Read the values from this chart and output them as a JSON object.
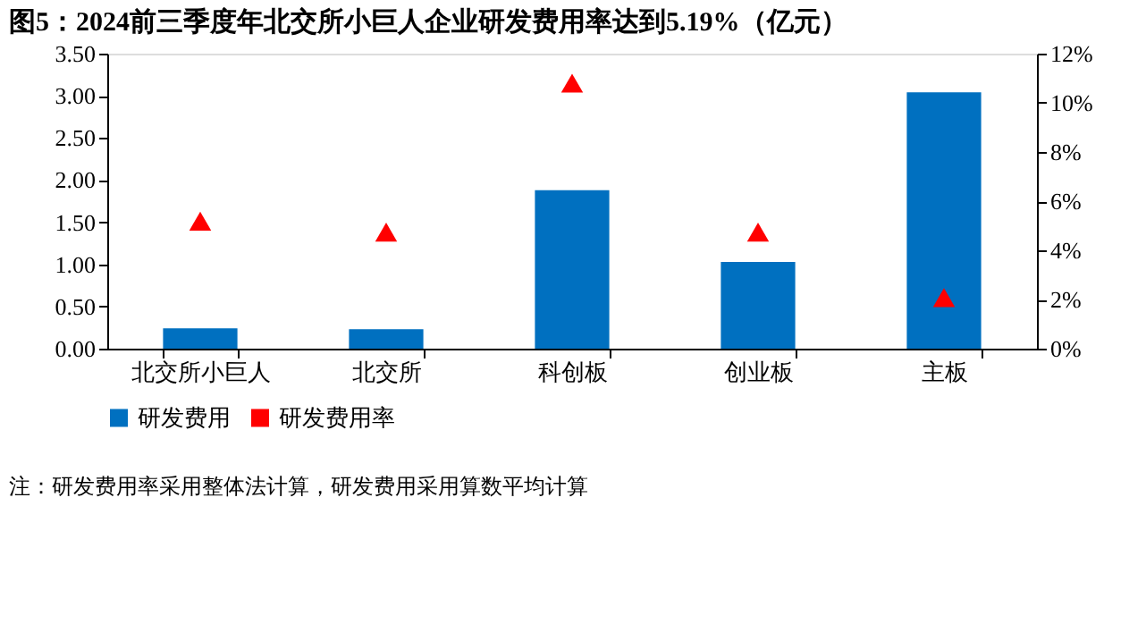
{
  "chart_data": {
    "type": "bar",
    "title": "图5：2024前三季度年北交所小巨人企业研发费用率达到5.19%（亿元）",
    "categories": [
      "北交所小巨人",
      "北交所",
      "科创板",
      "创业板",
      "主板"
    ],
    "series": [
      {
        "name": "研发费用",
        "color": "#0070c0",
        "values": [
          0.24,
          0.23,
          1.88,
          1.03,
          3.04
        ]
      },
      {
        "name": "研发费用率",
        "type": "scatter",
        "marker": "triangle",
        "axis": "y2",
        "color": "#ff0000",
        "values": [
          5.19,
          4.74,
          10.8,
          4.74,
          2.08
        ]
      }
    ],
    "ylim": [
      0,
      3.5
    ],
    "yticks": [
      {
        "value": 0,
        "label": "0.00"
      },
      {
        "value": 0.5,
        "label": "0.50"
      },
      {
        "value": 1,
        "label": "1.00"
      },
      {
        "value": 1.5,
        "label": "1.50"
      },
      {
        "value": 2,
        "label": "2.00"
      },
      {
        "value": 2.5,
        "label": "2.50"
      },
      {
        "value": 3,
        "label": "3.00"
      },
      {
        "value": 3.5,
        "label": "3.50"
      }
    ],
    "y2lim": [
      0,
      12
    ],
    "y2ticks": [
      {
        "value": 0,
        "label": "0%"
      },
      {
        "value": 2,
        "label": "2%"
      },
      {
        "value": 4,
        "label": "4%"
      },
      {
        "value": 6,
        "label": "6%"
      },
      {
        "value": 8,
        "label": "8%"
      },
      {
        "value": 10,
        "label": "10%"
      },
      {
        "value": 12,
        "label": "12%"
      }
    ],
    "grid": false,
    "legend": "bottom",
    "annotations": [
      "注：研发费用率采用整体法计算，研发费用采用算数平均计算"
    ]
  }
}
